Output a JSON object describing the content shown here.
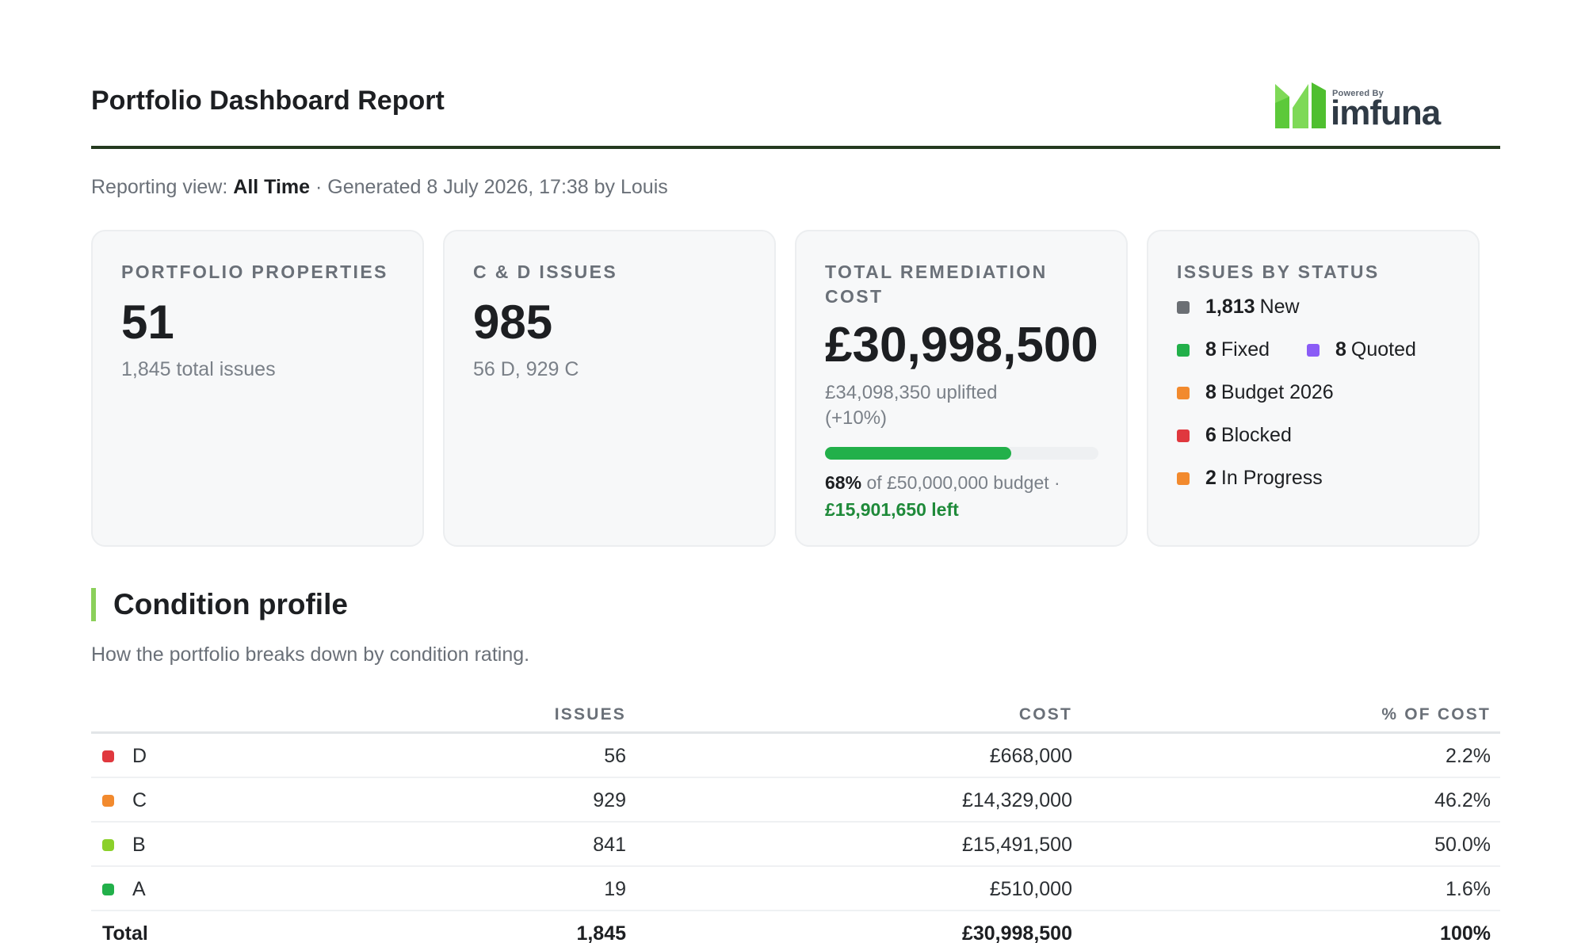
{
  "header": {
    "title": "Portfolio Dashboard Report",
    "logo_powered": "Powered By",
    "logo_brand": "imfuna"
  },
  "meta": {
    "view_label": "Reporting view:",
    "view_value": "All Time",
    "generated": "· Generated 8 July 2026, 17:38 by Louis"
  },
  "cards": {
    "properties": {
      "label": "PORTFOLIO PROPERTIES",
      "value": "51",
      "sub": "1,845 total issues"
    },
    "issues": {
      "label": "C & D ISSUES",
      "value": "985",
      "sub": "56 D, 929 C"
    },
    "cost": {
      "label": "TOTAL REMEDIATION COST",
      "value": "£30,998,500",
      "uplift": "£34,098,350 uplifted (+10%)",
      "budget_pct_value": 0.68,
      "budget_pct": "68%",
      "budget_text": "of £50,000,000 budget ·",
      "budget_left": "£15,901,650 left"
    },
    "status": {
      "label": "ISSUES BY STATUS",
      "items": [
        {
          "count": "1,813",
          "name": "New",
          "color": "#6b6f74"
        },
        {
          "count": "8",
          "name": "Fixed",
          "color": "#22b04a"
        },
        {
          "count": "8",
          "name": "Quoted",
          "color": "#8a5cf6"
        },
        {
          "count": "8",
          "name": "Budget 2026",
          "color": "#f28a2e"
        },
        {
          "count": "6",
          "name": "Blocked",
          "color": "#e0383e"
        },
        {
          "count": "2",
          "name": "In Progress",
          "color": "#f28a2e"
        }
      ]
    }
  },
  "condition": {
    "title": "Condition profile",
    "description": "How the portfolio breaks down by condition rating.",
    "columns": {
      "issues": "ISSUES",
      "cost": "COST",
      "pct": "% OF COST"
    },
    "rows": [
      {
        "rating": "D",
        "issues": "56",
        "cost": "£668,000",
        "pct": "2.2%",
        "color": "#e0383e"
      },
      {
        "rating": "C",
        "issues": "929",
        "cost": "£14,329,000",
        "pct": "46.2%",
        "color": "#f28a2e"
      },
      {
        "rating": "B",
        "issues": "841",
        "cost": "£15,491,500",
        "pct": "50.0%",
        "color": "#8bd02a"
      },
      {
        "rating": "A",
        "issues": "19",
        "cost": "£510,000",
        "pct": "1.6%",
        "color": "#22b04a"
      }
    ],
    "total": {
      "label": "Total",
      "issues": "1,845",
      "cost": "£30,998,500",
      "pct": "100%"
    }
  }
}
